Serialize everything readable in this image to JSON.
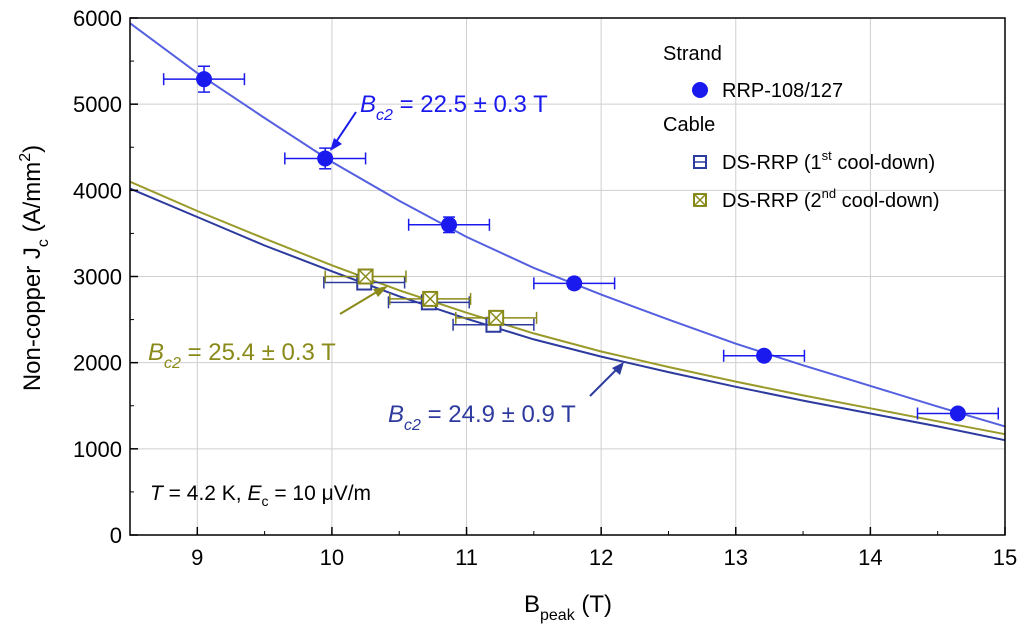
{
  "chart_data": {
    "type": "scatter",
    "xlabel_main": "B",
    "xlabel_sub": "peak",
    "xlabel_unit": " (T)",
    "ylabel_main": "Non-copper J",
    "ylabel_sub": "c",
    "ylabel_unit_pre": " (A/mm",
    "ylabel_unit_sup": "2",
    "ylabel_unit_post": ")",
    "xlim": [
      8.5,
      15
    ],
    "ylim": [
      0,
      6000
    ],
    "x_ticks": [
      9,
      10,
      11,
      12,
      13,
      14,
      15
    ],
    "y_ticks": [
      0,
      1000,
      2000,
      3000,
      4000,
      5000,
      6000
    ],
    "grid": true,
    "legend_position": "top-right",
    "colors": {
      "strand": "#1a1aee",
      "strand_fit": "#5560e0",
      "cable1": "#2d3a9e",
      "cable2": "#8a8a1a",
      "cable2_fit": "#9a9a2a"
    },
    "legend": {
      "group1_title": "Strand",
      "strand_label": "RRP-108/127",
      "group2_title": "Cable",
      "cable1_label_pre": "DS-RRP (1",
      "cable1_label_sup": "st",
      "cable1_label_post": " cool-down)",
      "cable2_label_pre": "DS-RRP (2",
      "cable2_label_sup": "nd",
      "cable2_label_post": " cool-down)"
    },
    "series": [
      {
        "name": "RRP-108/127",
        "marker": "filled-circle",
        "points": [
          {
            "x": 9.05,
            "y": 5290,
            "xerr": 0.3,
            "yerr": 150
          },
          {
            "x": 9.95,
            "y": 4370,
            "xerr": 0.3,
            "yerr": 120
          },
          {
            "x": 10.87,
            "y": 3600,
            "xerr": 0.3,
            "yerr": 90
          },
          {
            "x": 11.8,
            "y": 2920,
            "xerr": 0.3,
            "yerr": 60
          },
          {
            "x": 13.21,
            "y": 2080,
            "xerr": 0.3,
            "yerr": 50
          },
          {
            "x": 14.65,
            "y": 1410,
            "xerr": 0.3,
            "yerr": 40
          }
        ]
      },
      {
        "name": "DS-RRP (1st cool-down)",
        "marker": "open-square-bar",
        "points": [
          {
            "x": 10.24,
            "y": 2930,
            "xerr": 0.3,
            "yerr": 0
          },
          {
            "x": 10.72,
            "y": 2700,
            "xerr": 0.3,
            "yerr": 0
          },
          {
            "x": 11.2,
            "y": 2440,
            "xerr": 0.3,
            "yerr": 0
          }
        ]
      },
      {
        "name": "DS-RRP (2nd cool-down)",
        "marker": "open-square-cross",
        "points": [
          {
            "x": 10.25,
            "y": 3000,
            "xerr": 0.3,
            "yerr": 0
          },
          {
            "x": 10.73,
            "y": 2740,
            "xerr": 0.3,
            "yerr": 0
          },
          {
            "x": 11.22,
            "y": 2520,
            "xerr": 0.3,
            "yerr": 0
          }
        ]
      }
    ],
    "fits": [
      {
        "series": "RRP-108/127",
        "points": [
          [
            8.5,
            5940
          ],
          [
            9,
            5360
          ],
          [
            9.5,
            4840
          ],
          [
            10,
            4330
          ],
          [
            10.5,
            3880
          ],
          [
            11,
            3460
          ],
          [
            11.5,
            3100
          ],
          [
            12,
            2790
          ],
          [
            12.5,
            2500
          ],
          [
            13,
            2220
          ],
          [
            13.5,
            1970
          ],
          [
            14,
            1730
          ],
          [
            14.5,
            1490
          ],
          [
            15,
            1260
          ]
        ]
      },
      {
        "series": "DS-RRP (1st cool-down)",
        "points": [
          [
            8.5,
            4020
          ],
          [
            9,
            3690
          ],
          [
            9.5,
            3360
          ],
          [
            10,
            3060
          ],
          [
            10.5,
            2770
          ],
          [
            11,
            2510
          ],
          [
            11.5,
            2270
          ],
          [
            12,
            2070
          ],
          [
            12.5,
            1890
          ],
          [
            13,
            1720
          ],
          [
            13.5,
            1560
          ],
          [
            14,
            1410
          ],
          [
            14.5,
            1260
          ],
          [
            15,
            1100
          ]
        ]
      },
      {
        "series": "DS-RRP (2nd cool-down)",
        "points": [
          [
            8.5,
            4100
          ],
          [
            9,
            3760
          ],
          [
            9.5,
            3440
          ],
          [
            10,
            3130
          ],
          [
            10.5,
            2840
          ],
          [
            11,
            2580
          ],
          [
            11.5,
            2340
          ],
          [
            12,
            2130
          ],
          [
            12.5,
            1950
          ],
          [
            13,
            1780
          ],
          [
            13.5,
            1620
          ],
          [
            14,
            1470
          ],
          [
            14.5,
            1320
          ],
          [
            15,
            1170
          ]
        ]
      }
    ],
    "annotations": {
      "bc2_strand": {
        "pre": "B",
        "sub": "c2",
        "post": " = 22.5 ± 0.3 T"
      },
      "bc2_cable2": {
        "pre": "B",
        "sub": "c2",
        "post": " = 25.4 ± 0.3 T"
      },
      "bc2_cable1": {
        "pre": "B",
        "sub": "c2",
        "post": " = 24.9 ± 0.9 T"
      },
      "conditions": {
        "t_sym": "T",
        "t_val": " = 4.2 K, ",
        "e_sym": "E",
        "e_sub": "c",
        "e_val": " = 10 μV/m"
      }
    }
  }
}
